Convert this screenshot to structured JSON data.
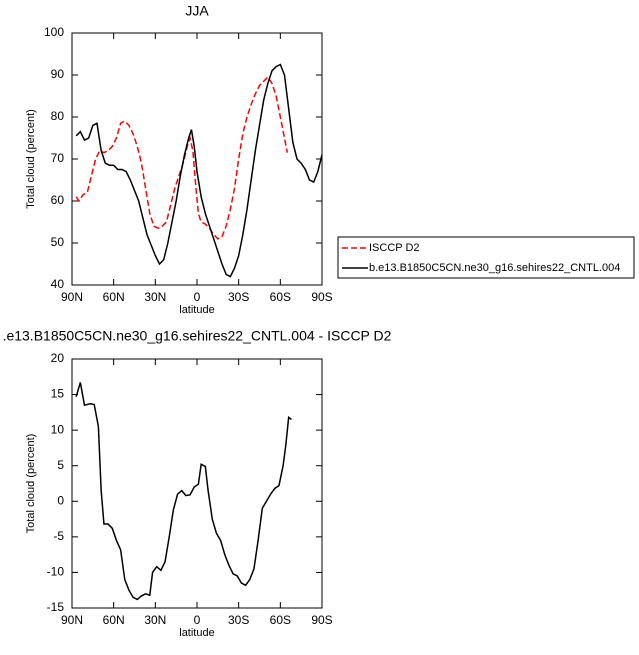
{
  "chart_data": [
    {
      "type": "line",
      "title": "JJA",
      "xlabel": "latitude",
      "ylabel": "Total cloud (percent)",
      "xlim": [
        90,
        -90
      ],
      "ylim": [
        40,
        100
      ],
      "xticks": [
        {
          "value": 90,
          "label": "90N"
        },
        {
          "value": 60,
          "label": "60N"
        },
        {
          "value": 30,
          "label": "30N"
        },
        0,
        {
          "value": -30,
          "label": "30S"
        },
        {
          "value": -60,
          "label": "60S"
        },
        {
          "value": -90,
          "label": "90S"
        }
      ],
      "yticks": [
        40,
        50,
        60,
        70,
        80,
        90,
        100
      ],
      "legend": "right",
      "series": [
        {
          "name": "ISCCP D2",
          "color": "#ff0000",
          "dashed": true,
          "x": [
            87,
            85,
            82,
            79,
            76,
            73,
            70,
            67,
            64,
            61,
            58,
            55,
            52,
            49,
            46,
            43,
            40,
            37,
            34,
            31,
            28,
            25,
            22,
            19,
            16,
            13,
            10,
            7,
            5,
            3,
            1,
            -1,
            -3,
            -6,
            -9,
            -12,
            -15,
            -18,
            -21,
            -24,
            -27,
            -30,
            -33,
            -36,
            -39,
            -42,
            -45,
            -48,
            -51,
            -54,
            -57,
            -60,
            -63,
            -65
          ],
          "values": [
            61,
            60,
            61.5,
            62,
            66,
            70,
            72,
            71.5,
            72,
            73,
            75,
            78.5,
            79,
            78,
            76,
            73,
            69,
            63,
            57,
            54,
            53.5,
            54,
            55,
            59,
            63,
            66,
            69,
            73,
            75,
            72,
            64,
            57,
            55,
            54.5,
            53.5,
            52,
            51,
            51.5,
            54,
            58,
            63,
            70,
            76,
            80,
            83,
            85.5,
            87.5,
            88.5,
            89.5,
            88,
            85,
            80,
            75,
            71.5
          ]
        },
        {
          "name": "b.e13.B1850C5CN.ne30_g16.sehires22_CNTL.004",
          "color": "#000000",
          "dashed": false,
          "x": [
            87,
            84,
            81,
            78,
            75,
            72,
            69,
            66,
            63,
            60,
            57,
            54,
            51,
            48,
            45,
            42,
            39,
            36,
            33,
            30,
            27,
            24,
            21,
            18,
            15,
            12,
            9,
            6,
            4,
            2,
            0,
            -3,
            -6,
            -9,
            -12,
            -15,
            -18,
            -21,
            -24,
            -27,
            -30,
            -33,
            -36,
            -39,
            -42,
            -45,
            -48,
            -51,
            -54,
            -57,
            -60,
            -63,
            -66,
            -69,
            -72,
            -75,
            -78,
            -81,
            -84,
            -87,
            -90
          ],
          "values": [
            75.5,
            76.5,
            74.5,
            75,
            78,
            78.5,
            72,
            69,
            68.5,
            68.5,
            67.5,
            67.5,
            67,
            65,
            62.5,
            60,
            56,
            52,
            49.5,
            47,
            45,
            46,
            50,
            55,
            60,
            66,
            71,
            75,
            77,
            73,
            67,
            61,
            57,
            54,
            51,
            48,
            45,
            42.5,
            42,
            44,
            47,
            52,
            58,
            65,
            72,
            78,
            84,
            88,
            91,
            92,
            92.5,
            90,
            82,
            74,
            70,
            69,
            67.5,
            65,
            64.5,
            67,
            71
          ]
        }
      ]
    },
    {
      "type": "line",
      "title": ".e13.B1850C5CN.ne30_g16.sehires22_CNTL.004 - ISCCP D2",
      "xlabel": "latitude",
      "ylabel": "Total cloud (percent)",
      "xlim": [
        90,
        -90
      ],
      "ylim": [
        -15,
        20
      ],
      "xticks": [
        {
          "value": 90,
          "label": "90N"
        },
        {
          "value": 60,
          "label": "60N"
        },
        {
          "value": 30,
          "label": "30N"
        },
        0,
        {
          "value": -30,
          "label": "30S"
        },
        {
          "value": -60,
          "label": "60S"
        },
        {
          "value": -90,
          "label": "90S"
        }
      ],
      "yticks": [
        -15,
        -10,
        -5,
        0,
        5,
        10,
        15,
        20
      ],
      "series": [
        {
          "color": "#000000",
          "dashed": false,
          "x": [
            87,
            84,
            81,
            77,
            74,
            71,
            69,
            67,
            64,
            61,
            58,
            55,
            52,
            49,
            46,
            43,
            40,
            37,
            34,
            32,
            29,
            26,
            23,
            20,
            17,
            14,
            11,
            8,
            5,
            2,
            -1,
            -3,
            -6,
            -8,
            -11,
            -14,
            -17,
            -20,
            -23,
            -26,
            -29,
            -32,
            -35,
            -38,
            -41,
            -44,
            -47,
            -50,
            -53,
            -56,
            -59,
            -62,
            -64,
            -66,
            -68
          ],
          "values": [
            14.7,
            16.7,
            13.5,
            13.7,
            13.6,
            10.5,
            1.5,
            -3.2,
            -3.2,
            -3.8,
            -5.5,
            -6.8,
            -11,
            -12.5,
            -13.5,
            -13.8,
            -13.3,
            -13,
            -13.2,
            -10,
            -9.2,
            -9.7,
            -8.5,
            -5,
            -1.2,
            1,
            1.5,
            0.8,
            0.9,
            2,
            2.4,
            5.2,
            4.9,
            1.5,
            -2.5,
            -4.5,
            -5.5,
            -7.5,
            -9,
            -10.2,
            -10.5,
            -11.5,
            -11.8,
            -11,
            -9.5,
            -5.5,
            -1,
            0,
            1,
            1.8,
            2.2,
            5,
            8,
            11.8,
            11.5
          ]
        }
      ]
    }
  ]
}
